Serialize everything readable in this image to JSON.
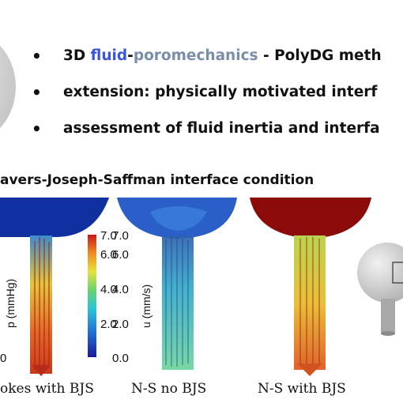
{
  "bullets": {
    "b1_prefix": "3D ",
    "b1_fluid": "fluid",
    "b1_dash": "-",
    "b1_poro": "poromechanics",
    "b1_suffix": " - PolyDG meth",
    "b2": "extension: physically motivated interf",
    "b3": "assessment of fluid inertia and interfa",
    "dot": "•"
  },
  "subtitle": "avers-Joseph-Saffman interface condition",
  "colorbar_pressure": {
    "label": "p (mmHg)",
    "ticks": [
      "7.0",
      "6.0",
      "4.0",
      "2.0",
      "0"
    ]
  },
  "colorbar_velocity": {
    "label": "u (mm/s)",
    "ticks": [
      "7.0",
      "6.0",
      "4.0",
      "2.0",
      "0.0"
    ]
  },
  "captions": {
    "c1": "okes with BJS",
    "c2": "N-S no BJS",
    "c3": "N-S with BJS"
  },
  "colors": {
    "fluid_word": "#3a55d9",
    "poro_word": "#7a8eaa",
    "pressure_low": "#1030a0",
    "pressure_high": "#8b0a0a"
  }
}
